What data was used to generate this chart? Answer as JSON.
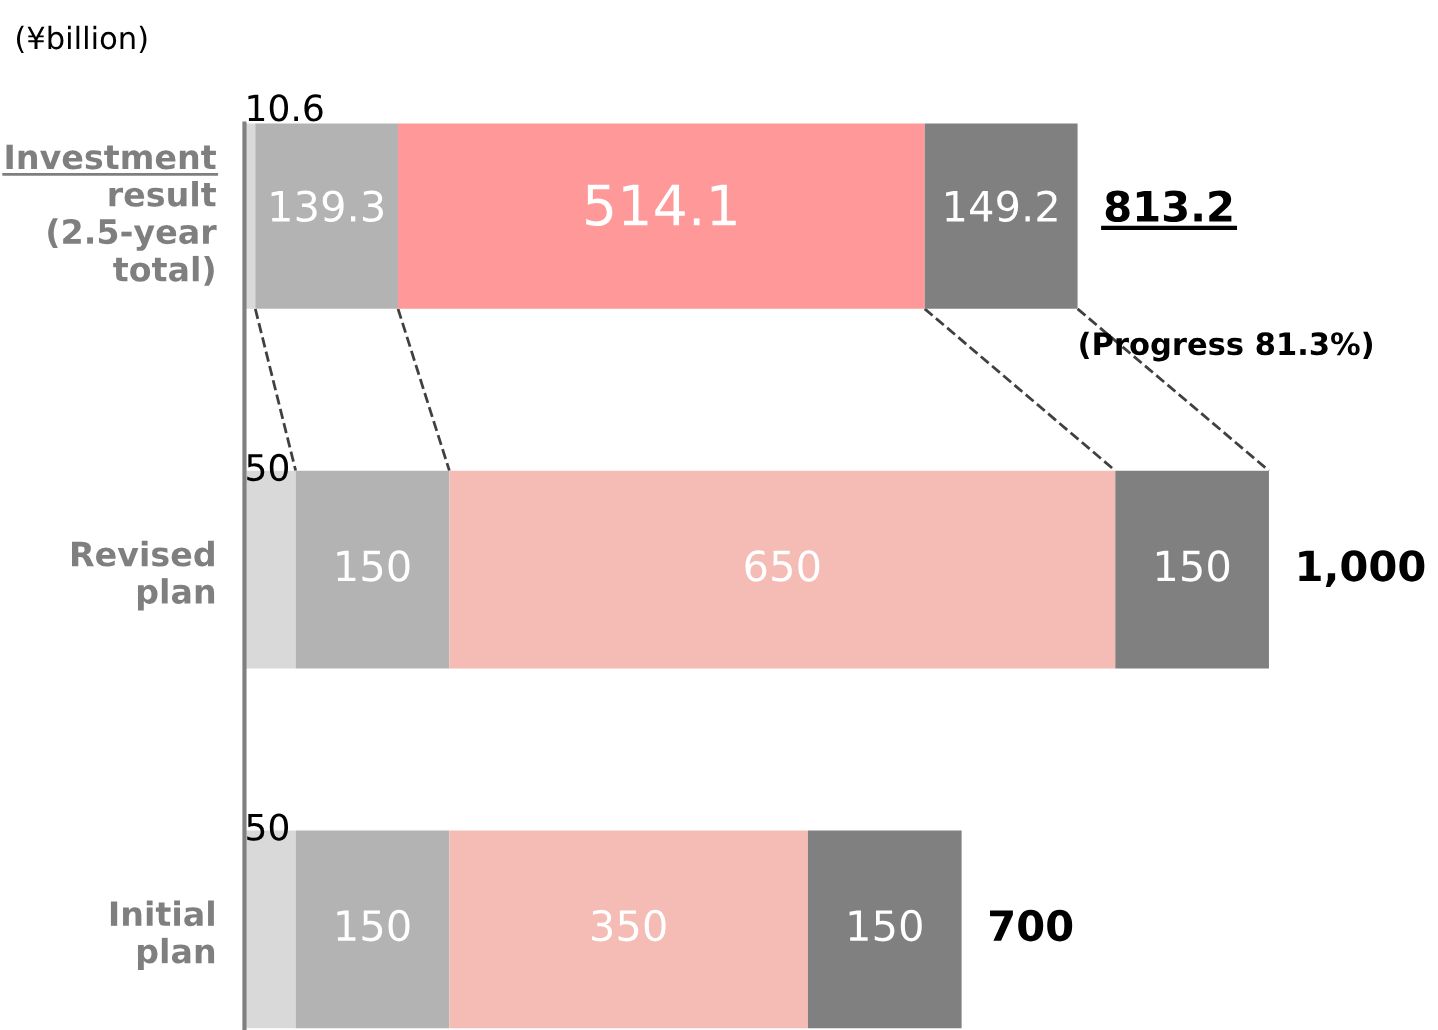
{
  "chart_data": {
    "type": "bar",
    "orientation": "horizontal",
    "stacked": true,
    "data_labels": true,
    "grid": false,
    "categories": [
      "Investment result (2.5-year total)",
      "Revised plan",
      "Initial plan"
    ],
    "series": [
      {
        "color": "#d9d9d9",
        "values": [
          10.6,
          50,
          50
        ]
      },
      {
        "color": "#b3b3b3",
        "values": [
          139.3,
          150,
          150
        ]
      },
      {
        "colors": [
          "#ff9999",
          "#f4bcb4",
          "#f4bcb4"
        ],
        "values": [
          514.1,
          650,
          350
        ]
      },
      {
        "color": "#808080",
        "values": [
          149.2,
          150,
          150
        ]
      }
    ],
    "totals": [
      "813.2",
      "1,000",
      "700"
    ],
    "annotations": [
      "(¥billion)",
      "(Progress 81.3%)"
    ]
  }
}
